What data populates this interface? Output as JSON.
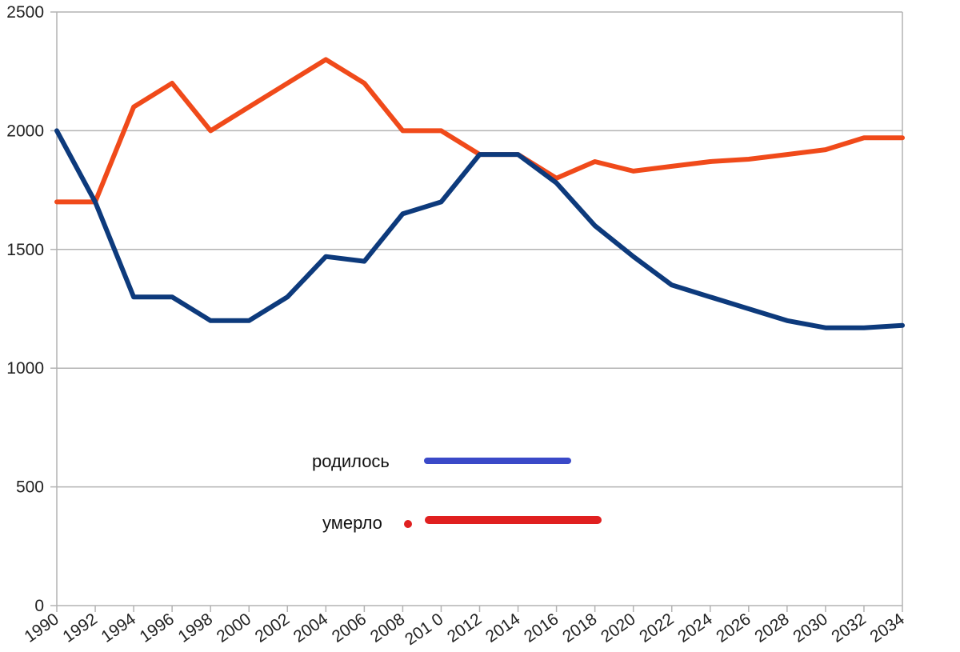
{
  "chart_data": {
    "type": "line",
    "x": [
      "1990",
      "1992",
      "1994",
      "1996",
      "1998",
      "2000",
      "2002",
      "2004",
      "2006",
      "2008",
      "2010",
      "2012",
      "2014",
      "2016",
      "2018",
      "2020",
      "2022",
      "2024",
      "2026",
      "2028",
      "2030",
      "2032",
      "2034"
    ],
    "x_tick_labels": [
      "1990",
      "1992",
      "1994",
      "1996",
      "1998",
      "2000",
      "2002",
      "2004",
      "2006",
      "2008",
      "201 0",
      "2012",
      "2014",
      "2016",
      "2018",
      "2020",
      "2022",
      "2024",
      "2026",
      "2028",
      "2030",
      "2032",
      "2034"
    ],
    "ylim": [
      0,
      2500
    ],
    "y_ticks": [
      0,
      500,
      1000,
      1500,
      2000,
      2500
    ],
    "grid": true,
    "series": [
      {
        "name": "родилось",
        "color": "#0d3a7c",
        "legend_color": "#3a49c8",
        "values": [
          2000,
          1700,
          1300,
          1300,
          1200,
          1200,
          1300,
          1470,
          1450,
          1650,
          1700,
          1900,
          1900,
          1780,
          1600,
          1470,
          1350,
          1300,
          1250,
          1200,
          1170,
          1170,
          1180
        ]
      },
      {
        "name": "умерло",
        "color": "#f04a1a",
        "legend_color": "#e02020",
        "values": [
          1700,
          1700,
          2100,
          2200,
          2000,
          2100,
          2200,
          2300,
          2200,
          2000,
          2000,
          1900,
          1900,
          1800,
          1870,
          1830,
          1850,
          1870,
          1880,
          1900,
          1920,
          1970,
          1970
        ]
      }
    ],
    "legend_placement": "center-bottom"
  }
}
